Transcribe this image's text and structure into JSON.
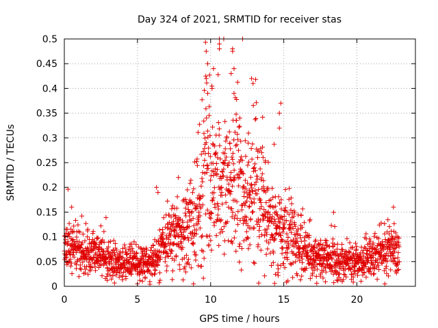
{
  "chart_data": {
    "type": "scatter",
    "title": "Day 324 of 2021, SRMTID for receiver stas",
    "xlabel": "GPS time / hours",
    "ylabel": "SRMTID / TECUs",
    "xlim": [
      0,
      24
    ],
    "ylim": [
      0,
      0.5
    ],
    "xticks": [
      0,
      5,
      10,
      15,
      20
    ],
    "xtick_labels": [
      "0",
      "5",
      "10",
      "15",
      "20"
    ],
    "yticks": [
      0,
      0.05,
      0.1,
      0.15,
      0.2,
      0.25,
      0.3,
      0.35,
      0.4,
      0.45,
      0.5
    ],
    "ytick_labels": [
      "0",
      "0.05",
      "0.1",
      "0.15",
      "0.2",
      "0.25",
      "0.3",
      "0.35",
      "0.4",
      "0.45",
      "0.5"
    ],
    "grid": true,
    "marker": "+",
    "marker_color": "#e00000",
    "x_data_range": [
      0,
      22.9
    ],
    "series": [
      {
        "name": "SRMTID",
        "profile": [
          {
            "x": 0.0,
            "median": 0.085,
            "spread": 0.025
          },
          {
            "x": 0.5,
            "median": 0.075,
            "spread": 0.025
          },
          {
            "x": 1.0,
            "median": 0.07,
            "spread": 0.025
          },
          {
            "x": 2.0,
            "median": 0.065,
            "spread": 0.022
          },
          {
            "x": 3.0,
            "median": 0.055,
            "spread": 0.02
          },
          {
            "x": 4.0,
            "median": 0.05,
            "spread": 0.018
          },
          {
            "x": 5.0,
            "median": 0.045,
            "spread": 0.015
          },
          {
            "x": 6.0,
            "median": 0.05,
            "spread": 0.015
          },
          {
            "x": 6.5,
            "median": 0.065,
            "spread": 0.025
          },
          {
            "x": 7.0,
            "median": 0.085,
            "spread": 0.03
          },
          {
            "x": 8.0,
            "median": 0.11,
            "spread": 0.04
          },
          {
            "x": 9.0,
            "median": 0.13,
            "spread": 0.05
          },
          {
            "x": 9.5,
            "median": 0.2,
            "spread": 0.08
          },
          {
            "x": 10.0,
            "median": 0.22,
            "spread": 0.09
          },
          {
            "x": 11.0,
            "median": 0.2,
            "spread": 0.08
          },
          {
            "x": 12.0,
            "median": 0.2,
            "spread": 0.07
          },
          {
            "x": 13.0,
            "median": 0.18,
            "spread": 0.07
          },
          {
            "x": 14.0,
            "median": 0.13,
            "spread": 0.04
          },
          {
            "x": 15.0,
            "median": 0.1,
            "spread": 0.05
          },
          {
            "x": 16.0,
            "median": 0.08,
            "spread": 0.03
          },
          {
            "x": 17.0,
            "median": 0.06,
            "spread": 0.02
          },
          {
            "x": 18.0,
            "median": 0.055,
            "spread": 0.02
          },
          {
            "x": 20.0,
            "median": 0.05,
            "spread": 0.018
          },
          {
            "x": 21.0,
            "median": 0.055,
            "spread": 0.02
          },
          {
            "x": 22.0,
            "median": 0.07,
            "spread": 0.025
          },
          {
            "x": 22.9,
            "median": 0.07,
            "spread": 0.025
          }
        ],
        "notable_points": [
          {
            "x": 10.6,
            "y": 0.5
          },
          {
            "x": 10.6,
            "y": 0.49
          },
          {
            "x": 10.6,
            "y": 0.48
          },
          {
            "x": 9.7,
            "y": 0.475
          },
          {
            "x": 11.5,
            "y": 0.48
          },
          {
            "x": 11.5,
            "y": 0.475
          },
          {
            "x": 9.8,
            "y": 0.45
          },
          {
            "x": 10.2,
            "y": 0.44
          },
          {
            "x": 11.6,
            "y": 0.44
          },
          {
            "x": 11.4,
            "y": 0.43
          },
          {
            "x": 9.7,
            "y": 0.42
          },
          {
            "x": 12.8,
            "y": 0.42
          },
          {
            "x": 12.9,
            "y": 0.41
          },
          {
            "x": 10.1,
            "y": 0.4
          },
          {
            "x": 9.8,
            "y": 0.39
          },
          {
            "x": 11.6,
            "y": 0.39
          },
          {
            "x": 14.8,
            "y": 0.37
          },
          {
            "x": 14.7,
            "y": 0.35
          },
          {
            "x": 12.0,
            "y": 0.34
          },
          {
            "x": 14.7,
            "y": 0.32
          },
          {
            "x": 6.3,
            "y": 0.2
          },
          {
            "x": 6.4,
            "y": 0.19
          },
          {
            "x": 7.8,
            "y": 0.22
          },
          {
            "x": 0.5,
            "y": 0.16
          },
          {
            "x": 22.5,
            "y": 0.16
          },
          {
            "x": 5.0,
            "y": 0.005
          }
        ]
      }
    ]
  }
}
